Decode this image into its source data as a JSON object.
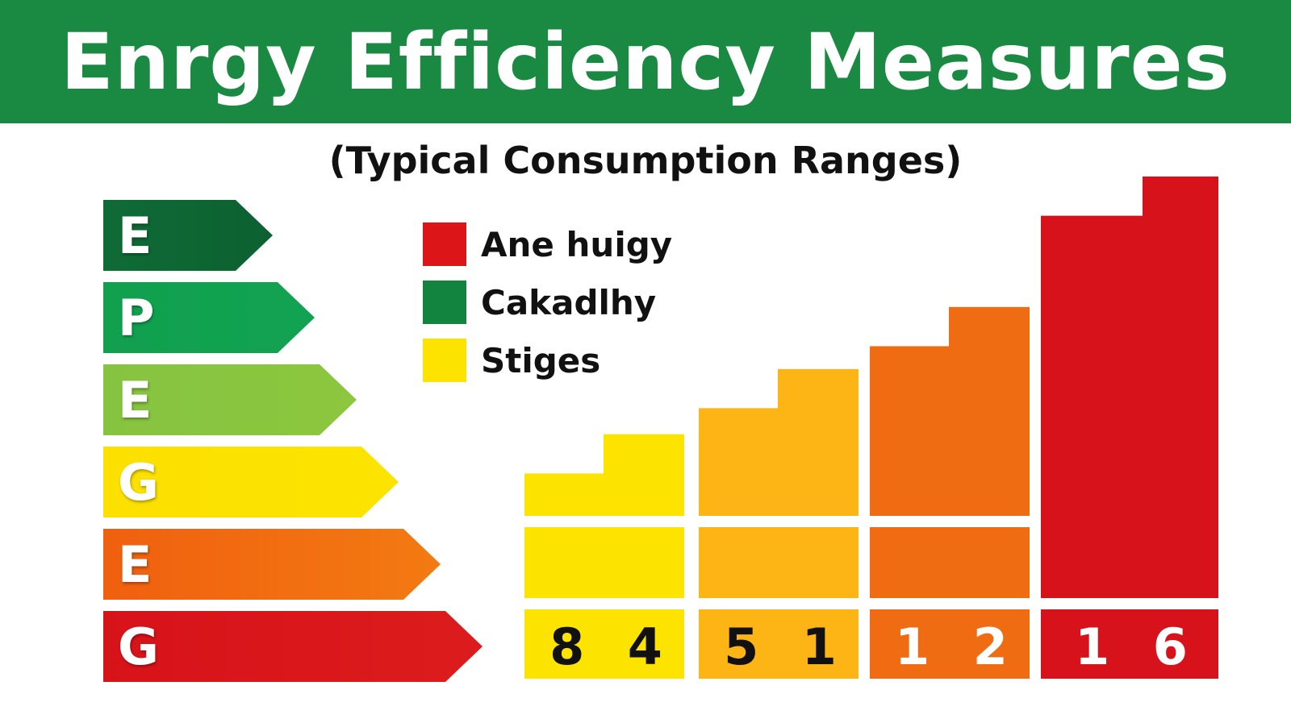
{
  "header": {
    "title": "Enrgy Efficiency Measures"
  },
  "subtitle": "(Typical Consumption Ranges)",
  "ratings": [
    {
      "letter": "E",
      "color": "#0f6b36",
      "color_end": "#0c6130"
    },
    {
      "letter": "P",
      "color": "#10a04e",
      "color_end": "#12a352"
    },
    {
      "letter": "E",
      "color": "#86c440",
      "color_end": "#8dc63f"
    },
    {
      "letter": "G",
      "color": "#fbe000",
      "color_end": "#fde400"
    },
    {
      "letter": "E",
      "color": "#f0600f",
      "color_end": "#f37a12"
    },
    {
      "letter": "G",
      "color": "#d7131a",
      "color_end": "#dc1c1c"
    }
  ],
  "legend": [
    {
      "label": "Ane huigy",
      "color": "#dc1618"
    },
    {
      "label": "Cakadlhy",
      "color": "#12843f"
    },
    {
      "label": "Stiges",
      "color": "#fde400"
    }
  ],
  "chart_data": {
    "type": "bar",
    "categories": [
      "8 4",
      "5 1",
      "1 2",
      "1 6"
    ],
    "values_printed": [
      "8 4",
      "5 1",
      "1 2",
      "1 6"
    ],
    "step_values": [
      {
        "lower": 6.5,
        "upper": 12.5
      },
      {
        "lower": 16.5,
        "upper": 22.5
      },
      {
        "lower": 26,
        "upper": 32
      },
      {
        "lower": 46,
        "upper": 52
      }
    ],
    "y_scale": [
      0,
      52
    ],
    "colors": [
      "#fde400",
      "#fdb515",
      "#f06c12",
      "#d8121a"
    ],
    "value_text_colors": [
      "#111111",
      "#111111",
      "#ffffff",
      "#ffffff"
    ],
    "base_block_colors": [
      "#fde400",
      "#fdb515",
      "#f06c12",
      null
    ]
  }
}
